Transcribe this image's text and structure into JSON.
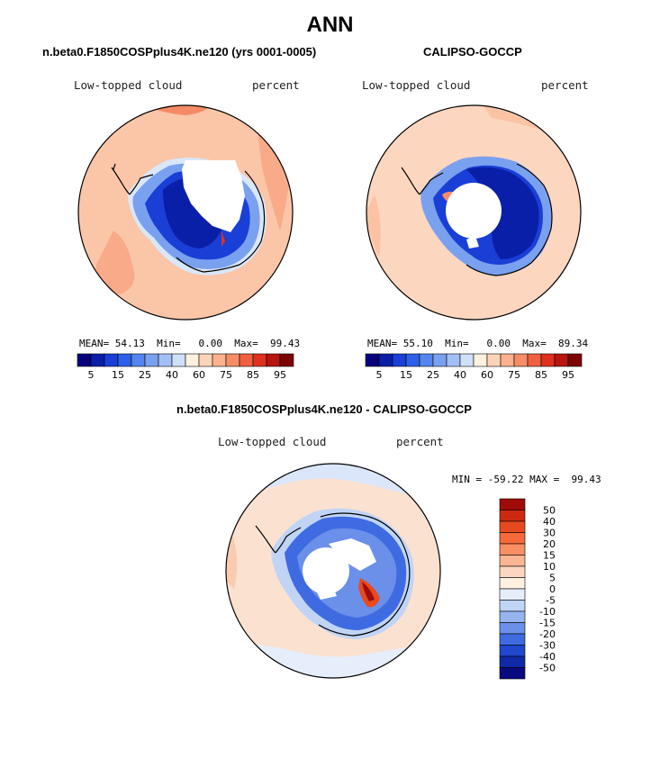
{
  "figure": {
    "title": "ANN",
    "panels": {
      "model": {
        "title": "n.beta0.F1850COSPplus4K.ne120 (yrs 0001-0005)",
        "left_label": "Low-topped cloud",
        "right_label": "percent",
        "mean_label": "MEAN=",
        "mean": "54.13",
        "min_label": "Min=",
        "min": "0.00",
        "max_label": "Max=",
        "max": "99.43"
      },
      "obs": {
        "title": "CALIPSO-GOCCP",
        "left_label": "Low-topped cloud",
        "right_label": "percent",
        "mean_label": "MEAN=",
        "mean": "55.10",
        "min_label": "Min=",
        "min": "0.00",
        "max_label": "Max=",
        "max": "89.34"
      },
      "diff": {
        "title": "n.beta0.F1850COSPplus4K.ne120 - CALIPSO-GOCCP",
        "left_label": "Low-topped cloud",
        "right_label": "percent",
        "minmax_text": "MIN = -59.22 MAX =  99.43"
      }
    }
  },
  "chart_data": [
    {
      "type": "heatmap",
      "projection": "south-polar-stereographic",
      "title": "n.beta0.F1850COSPplus4K.ne120 (yrs 0001-0005)",
      "variable": "Low-topped cloud",
      "units": "percent",
      "colorbar": {
        "orientation": "horizontal",
        "levels": [
          5,
          10,
          15,
          20,
          25,
          30,
          40,
          50,
          60,
          65,
          75,
          80,
          85,
          90,
          95
        ],
        "tick_labels": [
          "5",
          "15",
          "25",
          "40",
          "60",
          "75",
          "85",
          "95"
        ],
        "colors": [
          "#08007a",
          "#0a1fa8",
          "#1a3fd6",
          "#2e5fe8",
          "#5584ee",
          "#7aa0f0",
          "#a3c0f4",
          "#cfe0fa",
          "#fff1dd",
          "#fdd3b8",
          "#fbb090",
          "#f78c68",
          "#f06040",
          "#e03020",
          "#b81410",
          "#7a0606"
        ]
      },
      "stats": {
        "mean": 54.13,
        "min": 0.0,
        "max": 99.43
      }
    },
    {
      "type": "heatmap",
      "projection": "south-polar-stereographic",
      "title": "CALIPSO-GOCCP",
      "variable": "Low-topped cloud",
      "units": "percent",
      "colorbar": {
        "orientation": "horizontal",
        "levels": [
          5,
          10,
          15,
          20,
          25,
          30,
          40,
          50,
          60,
          65,
          75,
          80,
          85,
          90,
          95
        ],
        "tick_labels": [
          "5",
          "15",
          "25",
          "40",
          "60",
          "75",
          "85",
          "95"
        ],
        "colors": [
          "#08007a",
          "#0a1fa8",
          "#1a3fd6",
          "#2e5fe8",
          "#5584ee",
          "#7aa0f0",
          "#a3c0f4",
          "#cfe0fa",
          "#fff1dd",
          "#fdd3b8",
          "#fbb090",
          "#f78c68",
          "#f06040",
          "#e03020",
          "#b81410",
          "#7a0606"
        ]
      },
      "stats": {
        "mean": 55.1,
        "min": 0.0,
        "max": 89.34
      }
    },
    {
      "type": "heatmap",
      "projection": "south-polar-stereographic",
      "title": "n.beta0.F1850COSPplus4K.ne120 - CALIPSO-GOCCP",
      "variable": "Low-topped cloud",
      "units": "percent",
      "colorbar": {
        "orientation": "vertical",
        "tick_labels": [
          "50",
          "40",
          "30",
          "20",
          "15",
          "10",
          "5",
          "0",
          "-5",
          "-10",
          "-15",
          "-20",
          "-30",
          "-40",
          "-50"
        ],
        "colors": [
          "#a00a08",
          "#cc2a10",
          "#e84a20",
          "#f56a3a",
          "#f98f62",
          "#fbb592",
          "#fdd6bf",
          "#fff0e0",
          "#e6eefb",
          "#c0d4f6",
          "#95b4f0",
          "#6a90ea",
          "#3f6be2",
          "#1f48cf",
          "#0f2aa8",
          "#0a0a80"
        ]
      },
      "stats": {
        "min": -59.22,
        "max": 99.43
      }
    }
  ]
}
